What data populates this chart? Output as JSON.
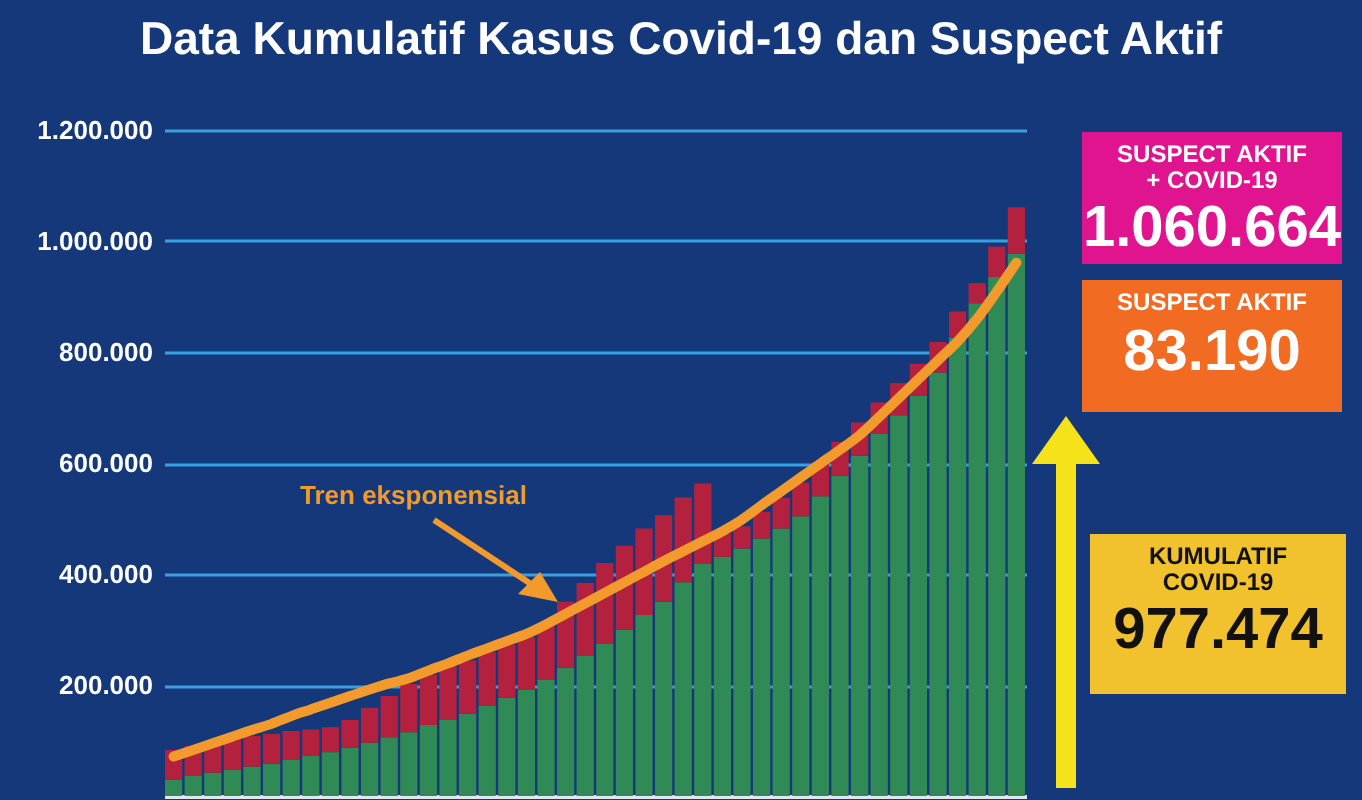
{
  "chart_data": {
    "type": "bar",
    "title": "Data Kumulatif Kasus Covid-19 dan Suspect Aktif",
    "stacked": true,
    "tick_labels": "y",
    "grid": "y",
    "legend": false,
    "categories": [
      null,
      null,
      null,
      null,
      null,
      null,
      null,
      null,
      null,
      null,
      null,
      null,
      null,
      null,
      null,
      null,
      null,
      null,
      null,
      null,
      null,
      null,
      null,
      null,
      null,
      null,
      null,
      null,
      null,
      null,
      null,
      null,
      null,
      null,
      null,
      null,
      null,
      null,
      null,
      null,
      null,
      null,
      null,
      null
    ],
    "ylim": [
      0,
      1200000
    ],
    "yticks": [
      {
        "value": 200000,
        "label": "200.000"
      },
      {
        "value": 400000,
        "label": "400.000"
      },
      {
        "value": 600000,
        "label": "600.000"
      },
      {
        "value": 800000,
        "label": "800.000"
      },
      {
        "value": 1000000,
        "label": "1.000.000"
      },
      {
        "value": 1200000,
        "label": "1.200.000"
      }
    ],
    "series": [
      {
        "color": "#2f8a55",
        "values": [
          29000,
          36000,
          42000,
          47000,
          53000,
          58000,
          65000,
          72000,
          79000,
          87000,
          96000,
          106000,
          115000,
          128000,
          137000,
          148000,
          162000,
          177000,
          191000,
          209000,
          231000,
          253000,
          275000,
          300000,
          326000,
          350000,
          385000,
          418000,
          431000,
          446000,
          464000,
          482000,
          504000,
          540000,
          577000,
          613000,
          653000,
          686000,
          721000,
          763000,
          826000,
          888000,
          935000,
          977474
        ]
      },
      {
        "color": "#b3213f",
        "values": [
          54000,
          54000,
          54000,
          56000,
          55000,
          54000,
          52000,
          48000,
          45000,
          50000,
          63000,
          74000,
          87000,
          91000,
          98000,
          96000,
          97000,
          96000,
          95000,
          102000,
          119000,
          131000,
          145000,
          151000,
          156000,
          156000,
          153000,
          145000,
          42000,
          40000,
          48000,
          55000,
          61000,
          62000,
          61000,
          60000,
          56000,
          58000,
          58000,
          55000,
          47000,
          36000,
          55000,
          83190
        ]
      },
      {
        "name": "Tren eksponensial",
        "type": "line",
        "color": "#f39a2c",
        "values": [
          71000,
          83000,
          95000,
          107000,
          119000,
          130000,
          144000,
          156000,
          168000,
          180000,
          192000,
          203000,
          212000,
          226000,
          239000,
          253000,
          266000,
          279000,
          292000,
          309000,
          328000,
          347000,
          366000,
          385000,
          404000,
          423000,
          441000,
          459000,
          477000,
          498000,
          524000,
          549000,
          574000,
          599000,
          624000,
          650000,
          683000,
          717000,
          751000,
          785000,
          819000,
          860000,
          909000,
          961000
        ]
      }
    ],
    "annotations": [
      "SUSPECT AKTIF + COVID-19",
      "1.060.664",
      "SUSPECT AKTIF",
      "83.190",
      "KUMULATIF COVID-19",
      "977.474"
    ]
  }
}
